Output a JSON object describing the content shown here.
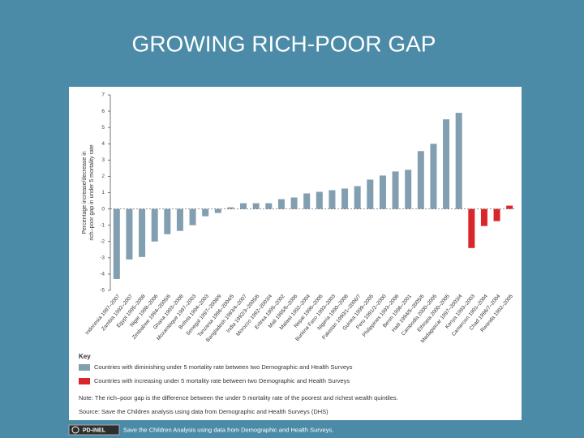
{
  "chart_data": {
    "type": "bar",
    "title": "GROWING RICH-POOR GAP",
    "y_label_lines": [
      "Percentage increase/decrease in",
      "rich–poor gap in under 5 mortality rate"
    ],
    "categories": [
      "Indonesia 1997–2007",
      "Zambia 1992–2007",
      "Egypt 1995–2008",
      "Niger 1998–2006",
      "Zimbabwe 1994–2005/6",
      "Ghana 1993–2008",
      "Mozambique 1997–2003",
      "Bolivia 1994–2003",
      "Senegal 1997–2008/9",
      "Tanzania 1996–2004/5",
      "Bangladesh 1993/4–2007",
      "India 1992/3–2005/6",
      "Morocco 1992–2003/4",
      "Eritrea 1995–2002",
      "Mali 1995/6–2006",
      "Malawi 1992–2004",
      "Nepal 1996–2006",
      "Burkina Faso 1993–2003",
      "Nigeria 1990–2008",
      "Pakistan 1990/1–2006/7",
      "Guinea 1999–2005",
      "Peru 1991/2–2000",
      "Philippines 1993–2008",
      "Benin 1996–2001",
      "Haiti 1994/5–2005/6",
      "Cambodia 2000–2005",
      "Ethiopia 2000–2005",
      "Madagascar 1997–2003/4",
      "Kenya 1993–2003",
      "Cameroon 1991–2004",
      "Chad 1996/7–2004",
      "Rwanda 1992–2005"
    ],
    "series": [
      {
        "name": "Countries with diminishing under 5 mortality rate between two Demographic and Health Surveys",
        "color": "#819fb0",
        "values": [
          -4.3,
          -3.1,
          -2.95,
          -2.0,
          -1.55,
          -1.35,
          -1.0,
          -0.45,
          -0.25,
          0.1,
          0.35,
          0.35,
          0.35,
          0.6,
          0.7,
          0.95,
          1.05,
          1.15,
          1.25,
          1.4,
          1.8,
          2.05,
          2.3,
          2.4,
          3.55,
          4.0,
          5.5,
          5.9,
          null,
          null,
          null,
          null
        ]
      },
      {
        "name": "Countries with increasing under 5 mortality rate between two Demographic and Health Surveys",
        "color": "#d8262b",
        "values": [
          null,
          null,
          null,
          null,
          null,
          null,
          null,
          null,
          null,
          null,
          null,
          null,
          null,
          null,
          null,
          null,
          null,
          null,
          null,
          null,
          null,
          null,
          null,
          null,
          null,
          null,
          null,
          null,
          -2.4,
          -1.05,
          -0.75,
          0.2
        ]
      }
    ],
    "ylim": [
      -5,
      7
    ],
    "yticks": [
      -5,
      -4,
      -3,
      -2,
      -1,
      0,
      1,
      2,
      3,
      4,
      5,
      6,
      7
    ],
    "key_title": "Key",
    "note": "Note: The rich–poor gap is the difference between the under 5 mortality rate of the poorest and richest wealth quintiles.",
    "source": "Source: Save the Children analysis using data from Demographic and Health Surveys (DHS)"
  },
  "footer": {
    "badge": "PD-INEL",
    "text": "Save the Children Analysis using data from Demographic and Health Surveys."
  }
}
